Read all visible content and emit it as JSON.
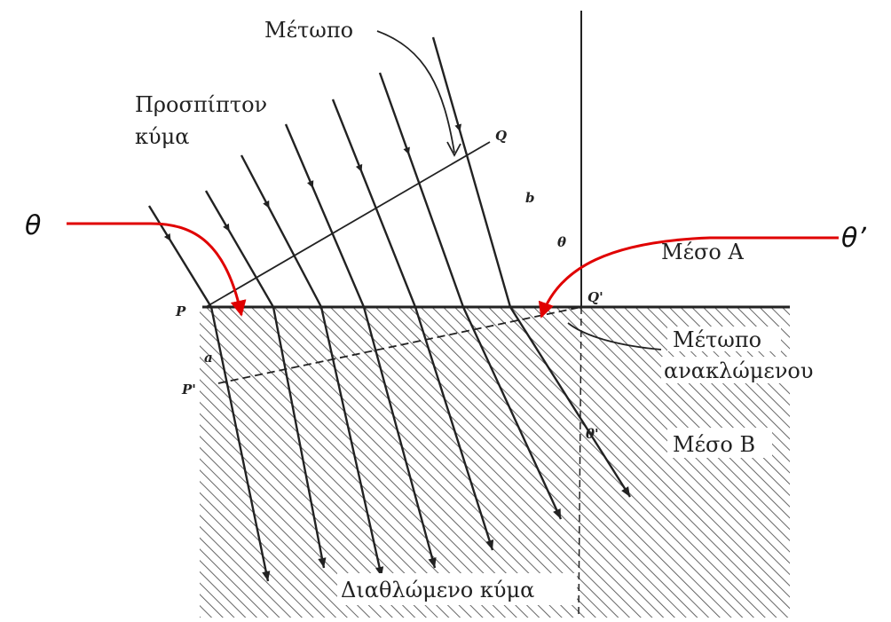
{
  "labels": {
    "wavefront_top": "Μέτωπο",
    "incident_wave_line1": "Προσπίπτον",
    "incident_wave_line2": "κύμα",
    "point_Q": "Q",
    "segment_b": "b",
    "angle_theta_small": "θ",
    "medium_A": "Μέσο Α",
    "point_P": "P",
    "point_Q_prime": "Q'",
    "segment_a": "a",
    "point_P_prime": "P'",
    "refracted_front_line1": "Μέτωπο",
    "refracted_front_line2": "ανακλώμενου",
    "angle_theta_prime_small": "θ'",
    "medium_B": "Μέσο Β",
    "refracted_wave": "Διαθλώμενο κύμα"
  },
  "annotations": {
    "theta_left": "θ",
    "theta_prime_right": "θ’"
  },
  "colors": {
    "ink": "#222222",
    "hatch": "#555555",
    "annotation_arrow": "#e00000"
  }
}
